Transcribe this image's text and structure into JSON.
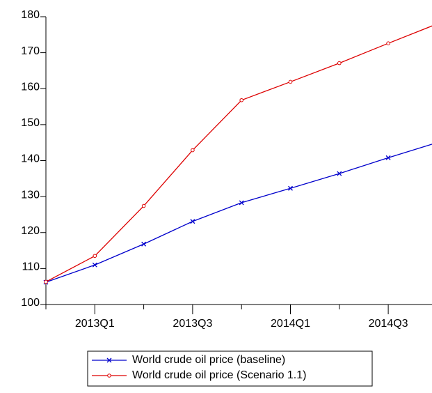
{
  "chart_data": {
    "type": "line",
    "categories": [
      null,
      "2013Q1",
      null,
      "2013Q3",
      null,
      "2014Q1",
      null,
      "2014Q3",
      null
    ],
    "series": [
      {
        "name": "World crude oil price (baseline)",
        "color": "#0000cc",
        "marker": "x",
        "values": [
          106.2,
          111.0,
          116.8,
          123.1,
          128.3,
          132.3,
          136.4,
          140.8,
          145.0
        ]
      },
      {
        "name": "World crude oil price (Scenario 1.1)",
        "color": "#dd0000",
        "marker": "circle",
        "values": [
          106.3,
          113.5,
          127.4,
          142.9,
          156.8,
          161.9,
          167.1,
          172.6,
          178.0
        ]
      }
    ],
    "ylim": [
      100,
      180
    ],
    "yticks": [
      100,
      110,
      120,
      130,
      140,
      150,
      160,
      170,
      180
    ],
    "grid": false,
    "legend": "bottom"
  }
}
